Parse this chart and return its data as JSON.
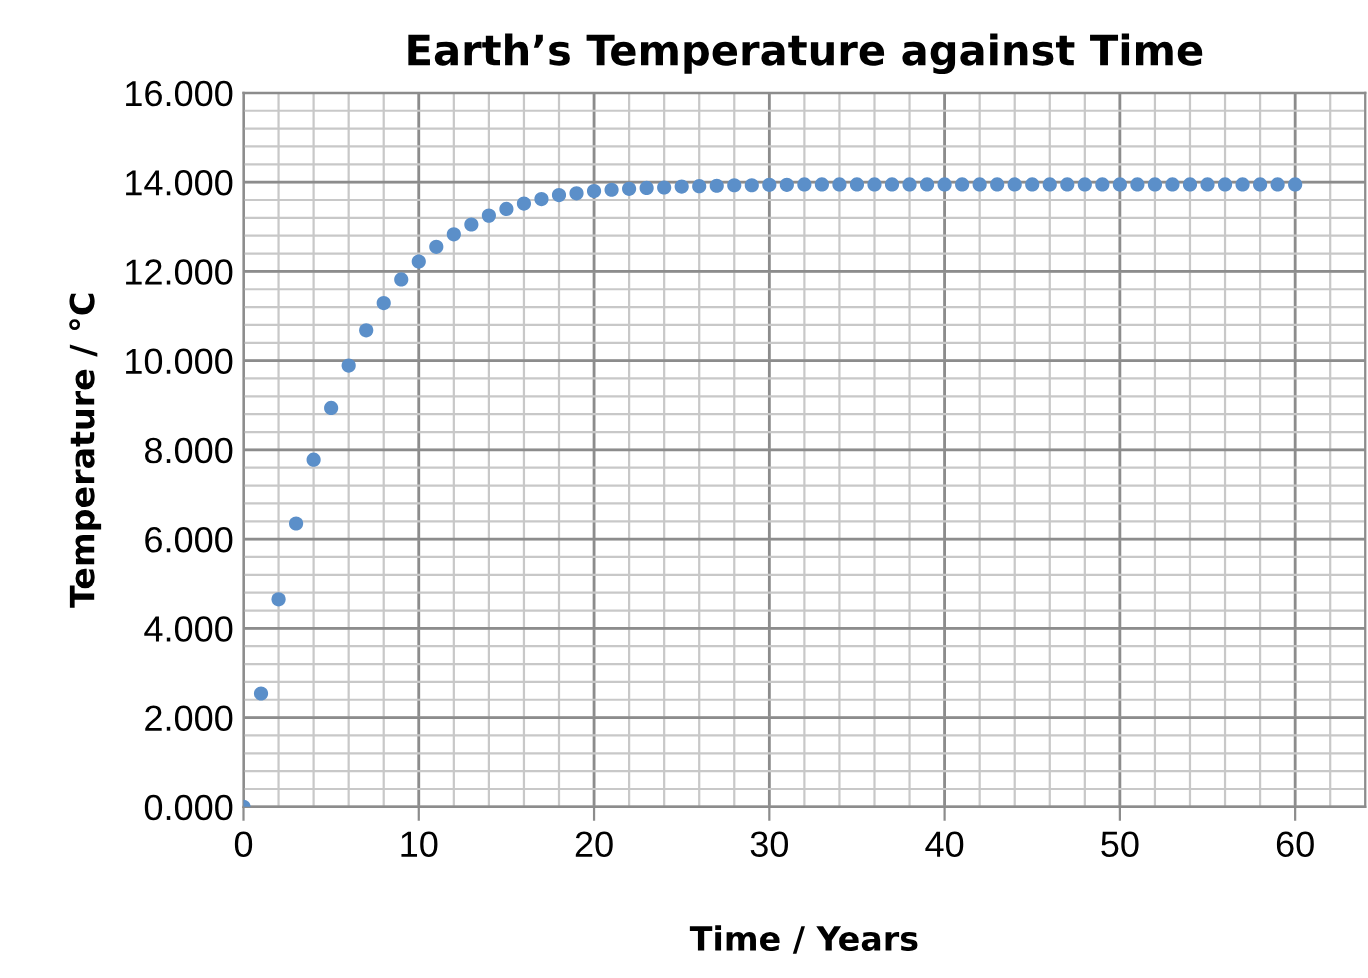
{
  "chart_data": {
    "type": "scatter",
    "title": "Earth’s Temperature against Time",
    "xlabel": "Time / Years",
    "ylabel": "Temperature / °C",
    "x": [
      0,
      1,
      2,
      3,
      4,
      5,
      6,
      7,
      8,
      9,
      10,
      11,
      12,
      13,
      14,
      15,
      16,
      17,
      18,
      19,
      20,
      21,
      22,
      23,
      24,
      25,
      26,
      27,
      28,
      29,
      30,
      31,
      32,
      33,
      34,
      35,
      36,
      37,
      38,
      39,
      40,
      41,
      42,
      43,
      44,
      45,
      46,
      47,
      48,
      49,
      50,
      51,
      52,
      53,
      54,
      55,
      56,
      57,
      58,
      59,
      60
    ],
    "series": [
      {
        "color": "#5b8fc9",
        "values": [
          0,
          2.54,
          4.65,
          6.35,
          7.78,
          8.94,
          9.89,
          10.68,
          11.29,
          11.82,
          12.22,
          12.55,
          12.83,
          13.05,
          13.25,
          13.4,
          13.52,
          13.62,
          13.71,
          13.75,
          13.8,
          13.83,
          13.85,
          13.87,
          13.88,
          13.9,
          13.91,
          13.92,
          13.93,
          13.93,
          13.94,
          13.94,
          13.95,
          13.95,
          13.95,
          13.95,
          13.95,
          13.95,
          13.95,
          13.95,
          13.95,
          13.95,
          13.95,
          13.95,
          13.95,
          13.95,
          13.95,
          13.95,
          13.95,
          13.95,
          13.95,
          13.95,
          13.95,
          13.95,
          13.95,
          13.95,
          13.95,
          13.95,
          13.95,
          13.95,
          13.95
        ]
      }
    ],
    "xlim": [
      0,
      64
    ],
    "xticks": [
      0,
      10,
      20,
      30,
      40,
      50,
      60
    ],
    "ylim": [
      0,
      16
    ],
    "yticks": [
      {
        "value": 0,
        "label": "0.000"
      },
      {
        "value": 2,
        "label": "2.000"
      },
      {
        "value": 4,
        "label": "4.000"
      },
      {
        "value": 6,
        "label": "6.000"
      },
      {
        "value": 8,
        "label": "8.000"
      },
      {
        "value": 10,
        "label": "10.000"
      },
      {
        "value": 12,
        "label": "12.000"
      },
      {
        "value": 14,
        "label": "14.000"
      },
      {
        "value": 16,
        "label": "16.000"
      }
    ],
    "grid": true,
    "marker": "circle",
    "legend": false
  }
}
